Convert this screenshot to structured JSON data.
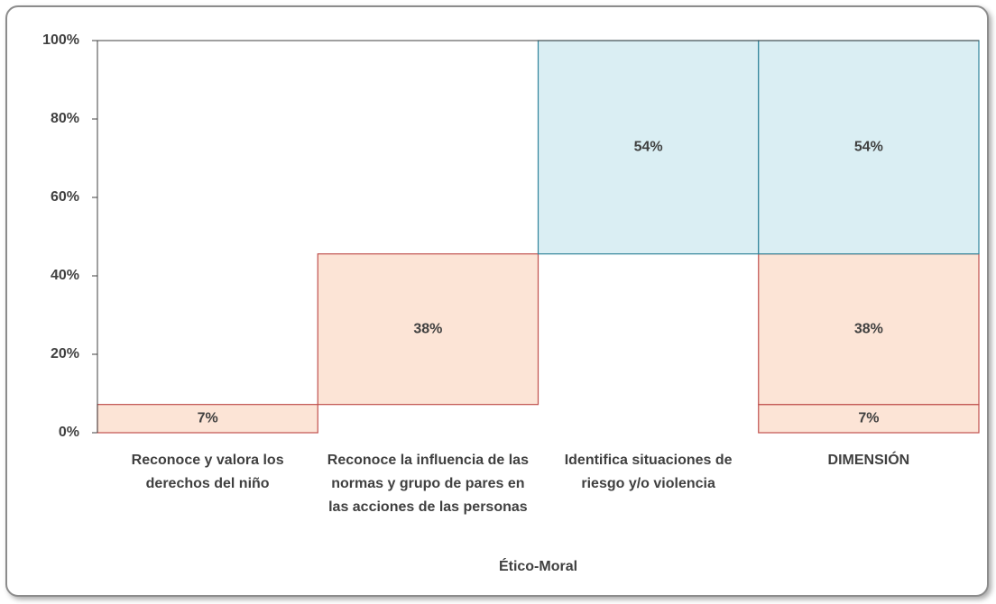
{
  "chart_data": {
    "type": "waterfall",
    "categories": [
      "Reconoce y valora los derechos del niño",
      "Reconoce la influencia de las normas y grupo de pares en las acciones de las personas",
      "Identifica situaciones de riesgo y/o violencia",
      "DIMENSIÓN"
    ],
    "xlabel": "Ético-Moral",
    "series": [
      {
        "color": "#c0504d",
        "fill": "#fce4d6",
        "values": [
          7.2,
          null,
          null,
          7.2
        ],
        "value_labels": [
          "7%",
          null,
          null,
          "7%"
        ]
      },
      {
        "color": "#c0504d",
        "fill": "#fce4d6",
        "values": [
          null,
          38.4,
          null,
          38.4
        ],
        "value_labels": [
          null,
          "38%",
          null,
          "38%"
        ]
      },
      {
        "color": "#31849b",
        "fill": "#daeef3",
        "values": [
          null,
          null,
          54.4,
          54.4
        ],
        "value_labels": [
          null,
          null,
          "54%",
          "54%"
        ]
      }
    ],
    "ylim": [
      0,
      100
    ],
    "yticks": [
      {
        "value": 0,
        "label": "0%"
      },
      {
        "value": 20,
        "label": "20%"
      },
      {
        "value": 40,
        "label": "40%"
      },
      {
        "value": 60,
        "label": "60%"
      },
      {
        "value": 80,
        "label": "80%"
      },
      {
        "value": 100,
        "label": "100%"
      }
    ]
  }
}
